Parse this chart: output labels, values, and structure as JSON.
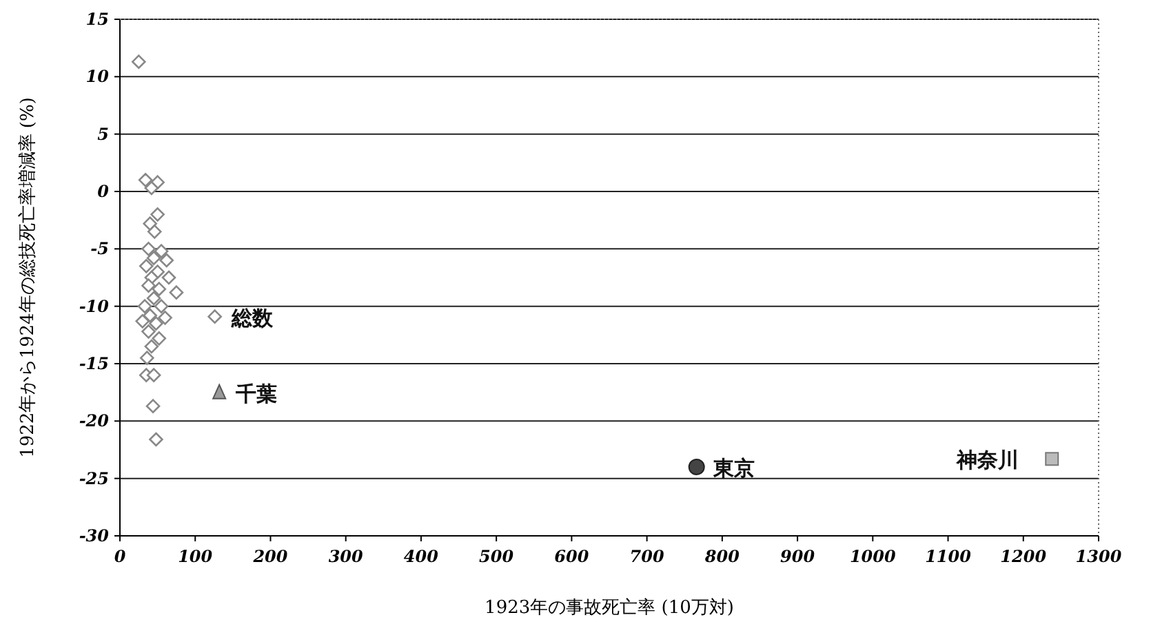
{
  "chart_data": {
    "type": "scatter",
    "xlabel": "1923年の事故死亡率 (10万対)",
    "ylabel": "1922年から1924年の総技死亡率増減率 (%)",
    "xlim": [
      0,
      1300
    ],
    "xticks": [
      0,
      100,
      200,
      300,
      400,
      500,
      600,
      700,
      800,
      900,
      1000,
      1100,
      1200,
      1300
    ],
    "ylim": [
      -30,
      15
    ],
    "yticks": [
      -30,
      -25,
      -20,
      -15,
      -10,
      -5,
      0,
      5,
      10,
      15
    ],
    "grid": "y",
    "series": [
      {
        "color": "#888888",
        "marker": "diamond",
        "x": [
          25,
          34,
          50,
          42,
          50,
          40,
          46,
          38,
          55,
          45,
          62,
          35,
          50,
          42,
          65,
          38,
          52,
          75,
          45,
          33,
          55,
          40,
          60,
          30,
          48,
          38,
          52,
          42,
          36,
          35,
          45,
          44,
          48
        ],
        "values": [
          11.3,
          1.0,
          0.8,
          0.3,
          -2.0,
          -2.8,
          -3.5,
          -5.0,
          -5.2,
          -5.8,
          -6.0,
          -6.5,
          -7.0,
          -7.5,
          -7.5,
          -8.2,
          -8.5,
          -8.8,
          -9.3,
          -10.0,
          -10.0,
          -10.8,
          -11.0,
          -11.3,
          -11.5,
          -12.2,
          -12.8,
          -13.5,
          -14.5,
          -16.0,
          -16.0,
          -18.7,
          -21.6
        ]
      },
      {
        "name": "総数",
        "color": "#888888",
        "marker": "diamond",
        "x": [
          126
        ],
        "values": [
          -10.9
        ]
      },
      {
        "name": "千葉",
        "color": "#999999",
        "marker": "triangle",
        "x": [
          132
        ],
        "values": [
          -17.5
        ]
      },
      {
        "name": "東京",
        "color": "#444444",
        "marker": "circle",
        "x": [
          766
        ],
        "values": [
          -24.0
        ]
      },
      {
        "name": "神奈川",
        "color": "#bbbbbb",
        "marker": "square",
        "x": [
          1238
        ],
        "values": [
          -23.3
        ]
      }
    ]
  }
}
